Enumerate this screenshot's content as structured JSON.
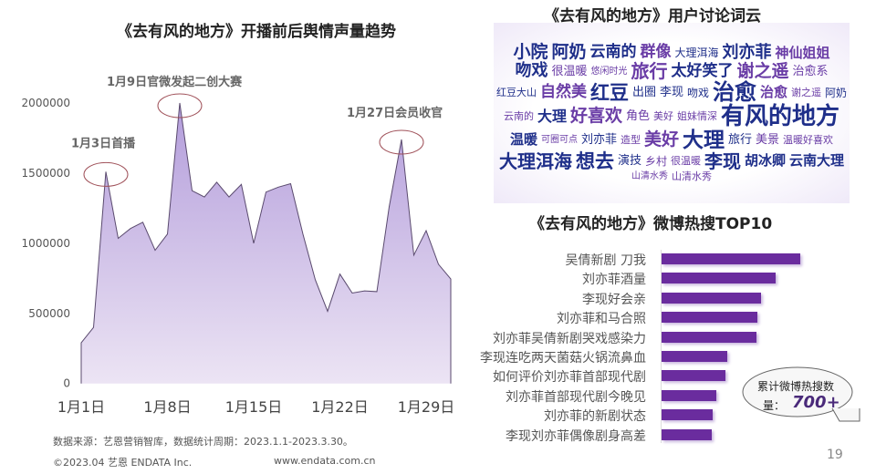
{
  "left_title": "《去有风的地方》开播前后舆情声量趋势",
  "cloud_title": "《去有风的地方》用户讨论词云",
  "bar_title": "《去有风的地方》微博热搜TOP10",
  "colors": {
    "area_top": "#b39ddb",
    "area_bottom": "#ece4f4",
    "bar": "#6a2c9e",
    "cloud_dark": "#1f2f8a",
    "cloud_purple": "#6a3da6",
    "annotation_circle": "#a0525a"
  },
  "chart_data": [
    {
      "type": "area",
      "title": "《去有风的地方》开播前后舆情声量趋势",
      "x": [
        "1月1日",
        "1月2日",
        "1月3日",
        "1月4日",
        "1月5日",
        "1月6日",
        "1月7日",
        "1月8日",
        "1月9日",
        "1月10日",
        "1月11日",
        "1月12日",
        "1月13日",
        "1月14日",
        "1月15日",
        "1月16日",
        "1月17日",
        "1月18日",
        "1月19日",
        "1月20日",
        "1月21日",
        "1月22日",
        "1月23日",
        "1月24日",
        "1月25日",
        "1月26日",
        "1月27日",
        "1月28日",
        "1月29日",
        "1月30日",
        "1月31日"
      ],
      "values": [
        290000,
        400000,
        1510000,
        1035000,
        1105000,
        1150000,
        950000,
        1065000,
        2000000,
        1375000,
        1330000,
        1435000,
        1330000,
        1420000,
        1000000,
        1365000,
        1400000,
        1425000,
        1065000,
        740000,
        515000,
        780000,
        645000,
        660000,
        655000,
        1260000,
        1740000,
        915000,
        1090000,
        850000,
        745000
      ],
      "xticks": [
        "1月1日",
        "1月8日",
        "1月15日",
        "1月22日",
        "1月29日"
      ],
      "yticks": [
        "0",
        "500000",
        "1000000",
        "1500000",
        "2000000"
      ],
      "ylim": [
        0,
        2000000
      ],
      "grid": false,
      "annotations": [
        {
          "x": "1月3日",
          "text": "1月3日首播"
        },
        {
          "x": "1月9日",
          "text": "1月9日官微发起二创大赛"
        },
        {
          "x": "1月27日",
          "text": "1月27日会员收官"
        }
      ]
    },
    {
      "type": "bar",
      "orientation": "horizontal",
      "title": "《去有风的地方》微博热搜TOP10",
      "categories": [
        "吴倩新剧 刀我",
        "刘亦菲酒量",
        "李现好会亲",
        "刘亦菲和马合照",
        "刘亦菲吴倩新剧哭戏感染力",
        "李现连吃两天菌菇火锅流鼻血",
        "如何评价刘亦菲首部现代剧",
        "刘亦菲首部现代剧今晚见",
        "刘亦菲的新剧状态",
        "李现刘亦菲偶像剧身高差"
      ],
      "values": [
        152,
        125,
        109,
        105,
        104,
        72,
        70,
        60,
        56,
        55
      ]
    }
  ],
  "callout": {
    "line1": "累计微博热搜数",
    "line2": "量：",
    "value": "700+"
  },
  "cloud_words": [
    "有风的地方",
    "刘亦菲",
    "大理洱海",
    "阿奶",
    "治愈",
    "旅行",
    "李现",
    "群像",
    "大理",
    "自然美",
    "美好",
    "神仙姐姐",
    "小院",
    "太好笑了",
    "胡冰卿",
    "吻戏",
    "好喜欢",
    "红豆",
    "大理",
    "云南的",
    "想去",
    "谢之遥",
    "温暖",
    "治愈",
    "云南大理",
    "很温暖",
    "角色",
    "出圈",
    "旅行",
    "治愈系",
    "演技",
    "大理洱海",
    "谢之遥",
    "可圈可点",
    "山清水秀",
    "悠闲时光",
    "美好",
    "李现",
    "美景",
    "红豆大山",
    "乡村",
    "阿奶",
    "刘亦菲",
    "山清水秀",
    "吻戏",
    "姐妹情深",
    "温暖好喜欢",
    "云南的",
    "很温暖",
    "造型"
  ],
  "footer": {
    "source": "数据来源：艺恩营销智库，数据统计周期：2023.1.1-2023.3.30。",
    "copyright": "©2023.04 艺恩 ENDATA Inc.",
    "website": "www.endata.com.cn",
    "page": "19"
  }
}
